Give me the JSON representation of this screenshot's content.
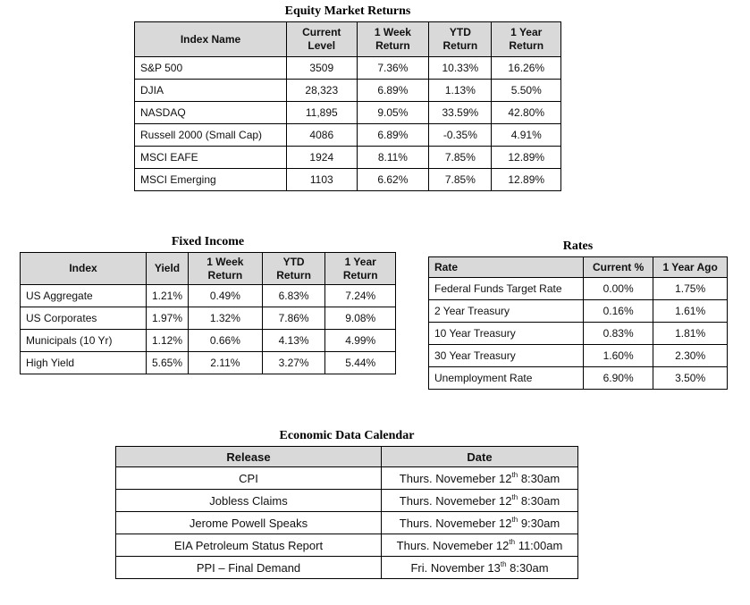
{
  "equity": {
    "title": "Equity Market Returns",
    "headers": [
      "Index Name",
      "Current Level",
      "1 Week Return",
      "YTD Return",
      "1 Year Return"
    ],
    "rows": [
      [
        "S&P 500",
        "3509",
        "7.36%",
        "10.33%",
        "16.26%"
      ],
      [
        "DJIA",
        "28,323",
        "6.89%",
        "1.13%",
        "5.50%"
      ],
      [
        "NASDAQ",
        "11,895",
        "9.05%",
        "33.59%",
        "42.80%"
      ],
      [
        "Russell 2000 (Small Cap)",
        "4086",
        "6.89%",
        "-0.35%",
        "4.91%"
      ],
      [
        "MSCI EAFE",
        "1924",
        "8.11%",
        "7.85%",
        "12.89%"
      ],
      [
        "MSCI Emerging",
        "1103",
        "6.62%",
        "7.85%",
        "12.89%"
      ]
    ]
  },
  "fixed_income": {
    "title": "Fixed Income",
    "headers": [
      "Index",
      "Yield",
      "1 Week Return",
      "YTD Return",
      "1 Year Return"
    ],
    "rows": [
      [
        "US Aggregate",
        "1.21%",
        "0.49%",
        "6.83%",
        "7.24%"
      ],
      [
        "US Corporates",
        "1.97%",
        "1.32%",
        "7.86%",
        "9.08%"
      ],
      [
        "Municipals (10 Yr)",
        "1.12%",
        "0.66%",
        "4.13%",
        "4.99%"
      ],
      [
        "High Yield",
        "5.65%",
        "2.11%",
        "3.27%",
        "5.44%"
      ]
    ]
  },
  "rates": {
    "title": "Rates",
    "headers": [
      "Rate",
      "Current %",
      "1 Year Ago"
    ],
    "rows": [
      [
        "Federal Funds Target Rate",
        "0.00%",
        "1.75%"
      ],
      [
        "2 Year Treasury",
        "0.16%",
        "1.61%"
      ],
      [
        "10 Year Treasury",
        "0.83%",
        "1.81%"
      ],
      [
        "30 Year Treasury",
        "1.60%",
        "2.30%"
      ],
      [
        "Unemployment Rate",
        "6.90%",
        "3.50%"
      ]
    ]
  },
  "calendar": {
    "title": "Economic Data Calendar",
    "headers": [
      "Release",
      "Date"
    ],
    "rows": [
      {
        "release": "CPI",
        "date_pre": "Thurs. Novemeber 12",
        "date_sup": "th",
        "date_post": " 8:30am"
      },
      {
        "release": "Jobless Claims",
        "date_pre": "Thurs. Novemeber 12",
        "date_sup": "th",
        "date_post": " 8:30am"
      },
      {
        "release": "Jerome Powell Speaks",
        "date_pre": "Thurs. Novemeber 12",
        "date_sup": "th",
        "date_post": " 9:30am"
      },
      {
        "release": "EIA Petroleum Status Report",
        "date_pre": "Thurs. Novemeber 12",
        "date_sup": "th",
        "date_post": " 11:00am"
      },
      {
        "release": "PPI – Final Demand",
        "date_pre": "Fri. November 13",
        "date_sup": "th",
        "date_post": " 8:30am"
      }
    ]
  }
}
